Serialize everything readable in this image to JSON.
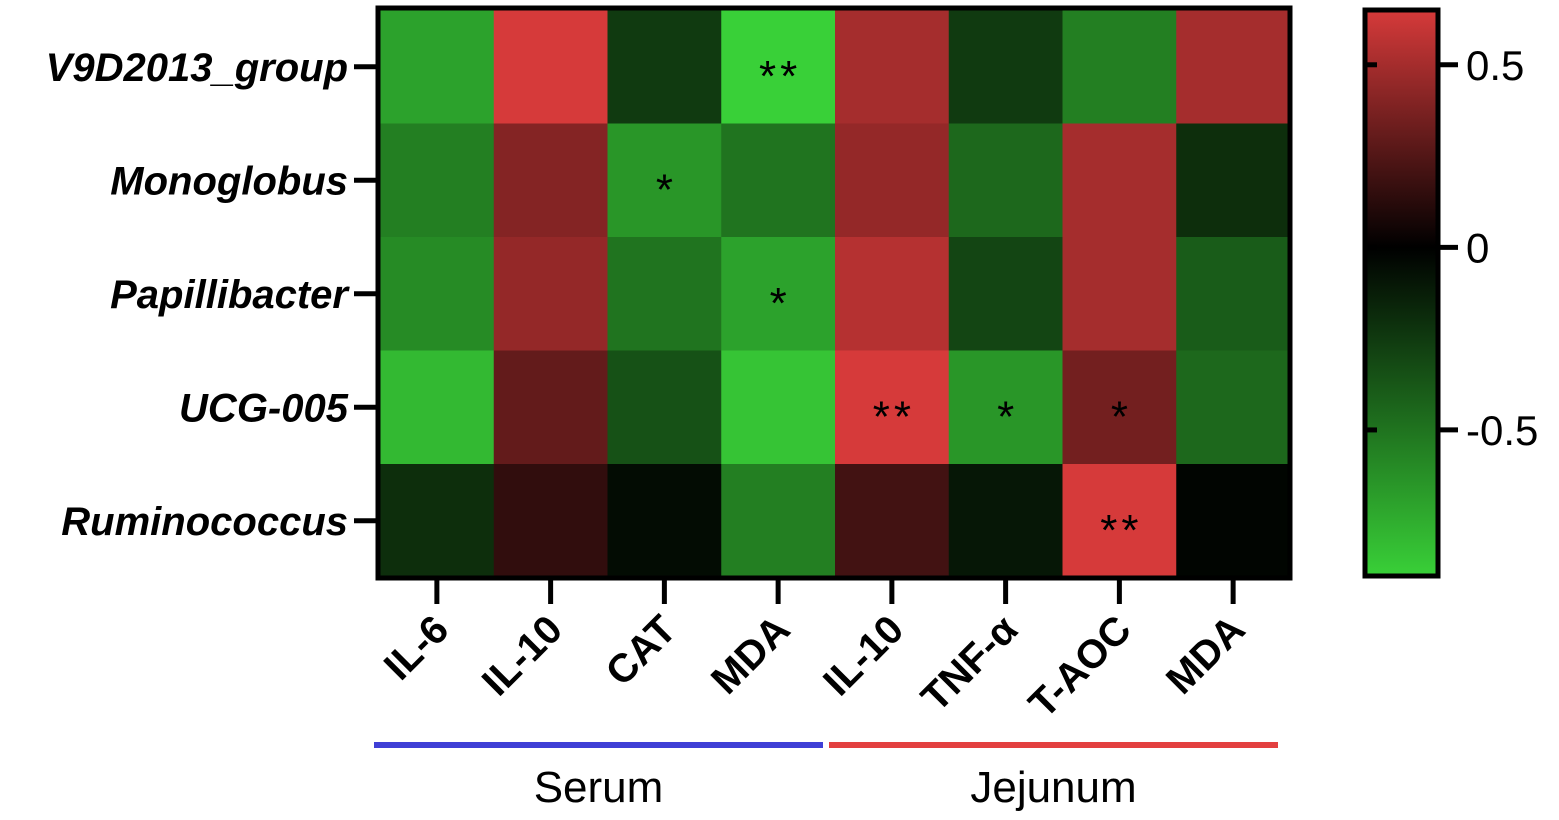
{
  "chart_data": {
    "type": "heatmap",
    "title": "",
    "xlabel": "",
    "ylabel": "",
    "rows": [
      "V9D2013_group",
      "Monoglobus",
      "Papillibacter",
      "UCG-005",
      "Ruminococcus"
    ],
    "columns": [
      "IL-6",
      "IL-10",
      "CAT",
      "MDA",
      "IL-10",
      "TNF-α",
      "T-AOC",
      "MDA"
    ],
    "values": [
      [
        -0.7,
        0.65,
        -0.25,
        -0.95,
        0.5,
        -0.25,
        -0.55,
        0.5
      ],
      [
        -0.55,
        0.4,
        -0.65,
        -0.5,
        0.45,
        -0.45,
        0.5,
        -0.2
      ],
      [
        -0.6,
        0.45,
        -0.5,
        -0.7,
        0.55,
        -0.3,
        0.5,
        -0.4
      ],
      [
        -0.8,
        0.3,
        -0.35,
        -0.85,
        0.65,
        -0.65,
        0.35,
        -0.45
      ],
      [
        -0.2,
        0.15,
        -0.05,
        -0.55,
        0.2,
        -0.1,
        0.7,
        -0.02
      ]
    ],
    "significance": [
      [
        "",
        "",
        "",
        "**",
        "",
        "",
        "",
        ""
      ],
      [
        "",
        "",
        "*",
        "",
        "",
        "",
        "",
        ""
      ],
      [
        "",
        "",
        "",
        "*",
        "",
        "",
        "",
        ""
      ],
      [
        "",
        "",
        "",
        "",
        "**",
        "*",
        "*",
        ""
      ],
      [
        "",
        "",
        "",
        "",
        "",
        "",
        "**",
        ""
      ]
    ],
    "colorbar": {
      "min": -0.9,
      "max": 0.65,
      "ticks": [
        0.5,
        0,
        -0.5
      ],
      "tick_labels": [
        "0.5",
        "0",
        "-0.5"
      ],
      "low_color": "#39d038",
      "mid_color": "#000000",
      "high_color": "#d63a3a"
    },
    "groups": [
      {
        "name": "Serum",
        "columns": [
          0,
          3
        ],
        "color": "#3f3fd6"
      },
      {
        "name": "Jejunum",
        "columns": [
          4,
          7
        ],
        "color": "#e34040"
      }
    ]
  }
}
